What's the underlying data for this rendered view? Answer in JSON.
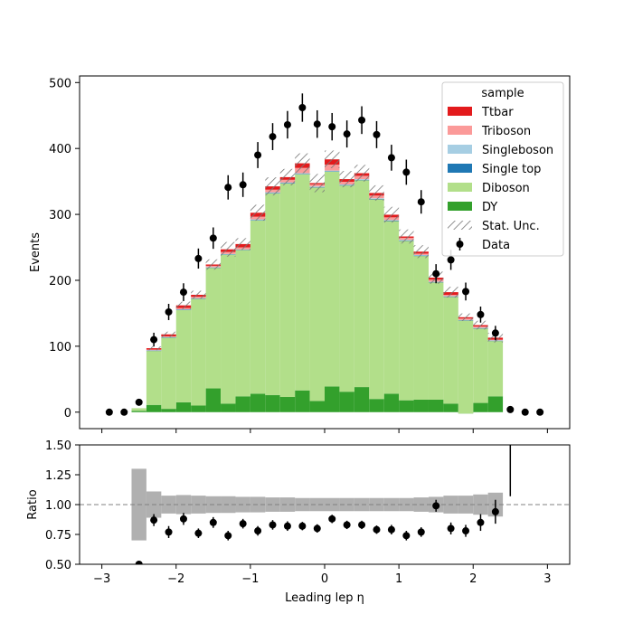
{
  "chart_data": [
    {
      "type": "bar",
      "stacked": true,
      "x_edges": [
        -3.0,
        -2.8,
        -2.6,
        -2.4,
        -2.2,
        -2.0,
        -1.8,
        -1.6,
        -1.4,
        -1.2,
        -1.0,
        -0.8,
        -0.6,
        -0.4,
        -0.2,
        0.0,
        0.2,
        0.4,
        0.6,
        0.8,
        1.0,
        1.2,
        1.4,
        1.6,
        1.8,
        2.0,
        2.2,
        2.4,
        2.6,
        2.8,
        3.0
      ],
      "xlim": [
        -3.3,
        3.3
      ],
      "ylim": [
        -25,
        510
      ],
      "ylabel": "Events",
      "x_ticks": [
        -3,
        -2,
        -1,
        0,
        1,
        2,
        3
      ],
      "y_ticks": [
        0,
        100,
        200,
        300,
        400,
        500
      ],
      "legend_title": "sample",
      "legend_position": "top-right",
      "series": [
        {
          "name": "DY",
          "color": "#33a02c",
          "values": [
            0,
            0,
            2,
            11,
            5,
            15,
            10,
            36,
            13,
            24,
            28,
            26,
            23,
            33,
            17,
            39,
            31,
            38,
            20,
            28,
            18,
            19,
            19,
            13,
            -2,
            14,
            24,
            0,
            0,
            0
          ]
        },
        {
          "name": "Diboson",
          "color": "#b2df8a",
          "values": [
            0,
            0,
            4,
            82,
            108,
            140,
            162,
            183,
            226,
            222,
            263,
            306,
            324,
            328,
            324,
            326,
            313,
            314,
            303,
            262,
            242,
            218,
            178,
            162,
            141,
            113,
            84,
            0,
            0,
            0
          ]
        },
        {
          "name": "Single top",
          "color": "#1f78b4",
          "values": [
            0,
            0,
            0,
            0.5,
            0.5,
            0.5,
            0.5,
            0.5,
            0.5,
            0.5,
            0.5,
            0.5,
            0.5,
            0.5,
            0.5,
            0.5,
            0.5,
            0.5,
            0.5,
            0.5,
            0.5,
            0.5,
            0.5,
            0.5,
            0.5,
            0.5,
            0.5,
            0,
            0,
            0
          ]
        },
        {
          "name": "Singleboson",
          "color": "#a6cee3",
          "values": [
            0,
            0,
            0,
            0.5,
            0.5,
            0.5,
            0.5,
            0.5,
            0.5,
            0.5,
            1,
            1,
            1,
            1,
            1,
            1,
            1,
            1,
            1,
            1,
            1,
            1,
            0.5,
            0.5,
            0.5,
            0.5,
            0.5,
            0,
            0,
            0
          ]
        },
        {
          "name": "Triboson",
          "color": "#fb9a99",
          "values": [
            0,
            0,
            0,
            1,
            1,
            2,
            2,
            2,
            3,
            3,
            4,
            4,
            4,
            8,
            3,
            9,
            4,
            5,
            4,
            4,
            3,
            2,
            3,
            2,
            2,
            2,
            1,
            0,
            0,
            0
          ]
        },
        {
          "name": "Ttbar",
          "color": "#e31a1c",
          "values": [
            0,
            0,
            0,
            2,
            3,
            4,
            3,
            2,
            4,
            5,
            6,
            5,
            4,
            7,
            2,
            8,
            4,
            4,
            4,
            4,
            2,
            3,
            3,
            4,
            2,
            2,
            3,
            0,
            0,
            0
          ]
        }
      ],
      "stat_unc": {
        "name": "Stat. Unc.",
        "rel_values": [
          0,
          0,
          0,
          0.03,
          0.035,
          0.035,
          0.035,
          0.035,
          0.045,
          0.035,
          0.04,
          0.04,
          0.035,
          0.04,
          0.04,
          0.035,
          0.035,
          0.035,
          0.035,
          0.04,
          0.04,
          0.04,
          0.045,
          0.045,
          0.04,
          0.05,
          0.065,
          0,
          0,
          0
        ]
      },
      "data": {
        "name": "Data",
        "x": [
          -2.9,
          -2.7,
          -2.5,
          -2.3,
          -2.1,
          -1.9,
          -1.7,
          -1.5,
          -1.3,
          -1.1,
          -0.9,
          -0.7,
          -0.5,
          -0.3,
          -0.1,
          0.1,
          0.3,
          0.5,
          0.7,
          0.9,
          1.1,
          1.3,
          1.5,
          1.7,
          1.9,
          2.1,
          2.3,
          2.5,
          2.7,
          2.9
        ],
        "y": [
          0,
          0,
          15,
          110,
          152,
          182,
          233,
          264,
          341,
          345,
          390,
          418,
          436,
          462,
          437,
          433,
          422,
          443,
          421,
          386,
          364,
          319,
          210,
          231,
          183,
          148,
          120,
          4,
          0,
          0
        ]
      }
    },
    {
      "type": "scatter",
      "ylabel": "Ratio",
      "xlabel": "Leading lep η",
      "xlim": [
        -3.3,
        3.3
      ],
      "ylim": [
        0.5,
        1.5
      ],
      "x_ticks": [
        -3,
        -2,
        -1,
        0,
        1,
        2,
        3
      ],
      "y_ticks": [
        0.5,
        0.75,
        1.0,
        1.25,
        1.5
      ],
      "y_tick_labels": [
        "0.50",
        "0.75",
        "1.00",
        "1.25",
        "1.50"
      ],
      "reference_line": 1.0,
      "unc_band_rel": [
        0,
        0,
        0.3,
        0.11,
        0.075,
        0.08,
        0.075,
        0.07,
        0.07,
        0.065,
        0.065,
        0.06,
        0.06,
        0.055,
        0.055,
        0.055,
        0.055,
        0.055,
        0.055,
        0.055,
        0.055,
        0.06,
        0.065,
        0.075,
        0.075,
        0.085,
        0.1,
        0,
        0,
        0
      ],
      "x": [
        -2.5,
        -2.3,
        -2.1,
        -1.9,
        -1.7,
        -1.5,
        -1.3,
        -1.1,
        -0.9,
        -0.7,
        -0.5,
        -0.3,
        -0.1,
        0.1,
        0.3,
        0.5,
        0.7,
        0.9,
        1.1,
        1.3,
        1.5,
        1.7,
        1.9,
        2.1,
        2.3
      ],
      "y": [
        0.5,
        0.87,
        0.77,
        0.88,
        0.76,
        0.85,
        0.74,
        0.84,
        0.78,
        0.83,
        0.82,
        0.82,
        0.8,
        0.88,
        0.83,
        0.83,
        0.79,
        0.79,
        0.74,
        0.77,
        0.99,
        0.8,
        0.78,
        0.85,
        0.94
      ],
      "yerr": [
        0.02,
        0.05,
        0.05,
        0.05,
        0.04,
        0.045,
        0.04,
        0.04,
        0.04,
        0.04,
        0.04,
        0.035,
        0.035,
        0.035,
        0.035,
        0.035,
        0.035,
        0.04,
        0.04,
        0.04,
        0.05,
        0.05,
        0.05,
        0.07,
        0.1
      ],
      "off_scale_point": {
        "x": 2.5,
        "y_low": 1.07
      }
    }
  ]
}
